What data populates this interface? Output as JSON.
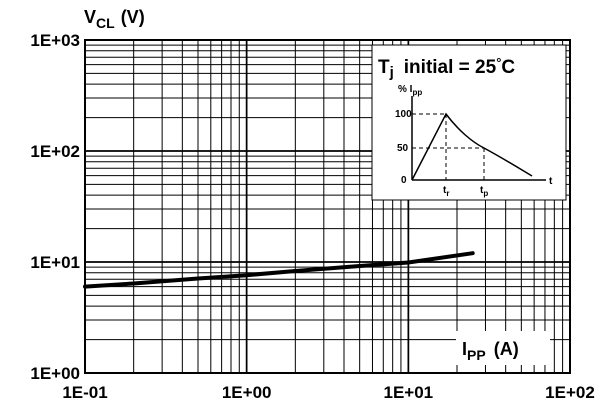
{
  "chart_data": {
    "type": "line",
    "x_scale": "log",
    "y_scale": "log",
    "xlim": [
      0.1,
      100
    ],
    "ylim": [
      1,
      1000
    ],
    "x_tick_labels": [
      "1E-01",
      "1E+00",
      "1E+01",
      "1E+02"
    ],
    "y_tick_labels": [
      "1E+00",
      "1E+01",
      "1E+02",
      "1E+03"
    ],
    "ylabel_main": "V",
    "ylabel_sub": "CL",
    "ylabel_unit": "(V)",
    "xlabel_main": "I",
    "xlabel_sub": "PP",
    "xlabel_unit": "(A)",
    "grid": true,
    "series": [
      {
        "x": [
          0.1,
          0.2,
          0.5,
          1,
          2,
          5,
          10,
          25
        ],
        "y": [
          6.0,
          6.4,
          7.1,
          7.6,
          8.3,
          9.2,
          9.9,
          12.0
        ]
      }
    ],
    "inset": {
      "title_main": "T",
      "title_sub": "j",
      "title_rest": "initial = 25",
      "title_degree": "°",
      "title_unit": "C",
      "ylabel_main": "% I",
      "ylabel_sub": "pp",
      "y_ticks": [
        "0",
        "50",
        "100"
      ],
      "x_label_tr_main": "t",
      "x_label_tr_sub": "r",
      "x_label_tp_main": "t",
      "x_label_tp_sub": "p",
      "x_axis_label": "t"
    }
  }
}
